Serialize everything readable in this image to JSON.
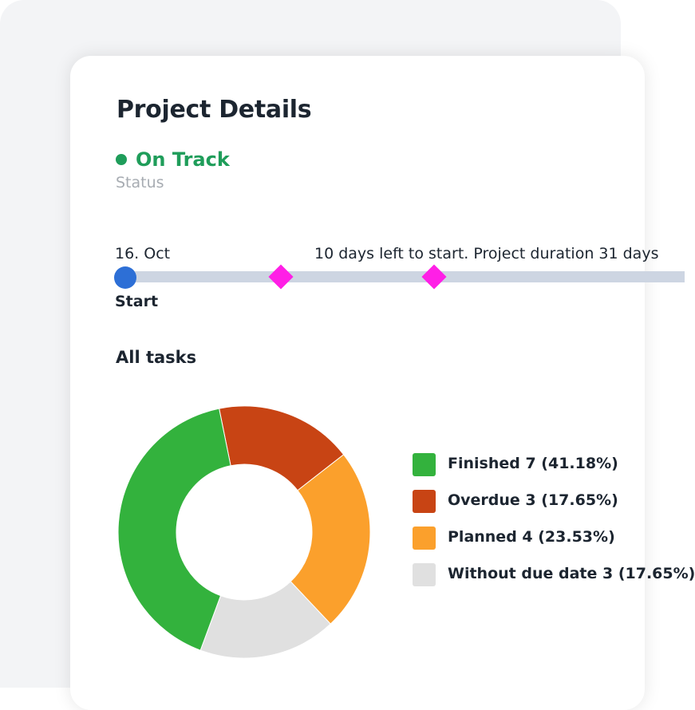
{
  "header": {
    "title": "Project Details"
  },
  "status": {
    "value": "On Track",
    "label": "Status",
    "color": "#1f9d5a"
  },
  "timeline": {
    "start_date": "16. Oct",
    "note": "10 days left to start. Project duration 31 days",
    "start_label": "Start",
    "colors": {
      "bar": "#cdd5e2",
      "start": "#2d6fd6",
      "milestone": "#ff1fe6"
    }
  },
  "tasks": {
    "heading": "All tasks"
  },
  "chart_data": {
    "type": "pie",
    "title": "All tasks",
    "categories": [
      "Finished",
      "Overdue",
      "Planned",
      "Without due date"
    ],
    "values": [
      7,
      3,
      4,
      3
    ],
    "legend": [
      {
        "name": "Finished",
        "value": 7,
        "text": "Finished 7 (41.18%)",
        "color": "#33b23d"
      },
      {
        "name": "Overdue",
        "value": 3,
        "text": "Overdue 3 (17.65%)",
        "color": "#c84414"
      },
      {
        "name": "Planned",
        "value": 4,
        "text": "Planned 4 (23.53%)",
        "color": "#fba02c"
      },
      {
        "name": "Without due date",
        "value": 3,
        "text": "Without due date 3 (17.65%)",
        "color": "#e0e0e0"
      }
    ],
    "legend_placement": "right",
    "donut": true
  }
}
